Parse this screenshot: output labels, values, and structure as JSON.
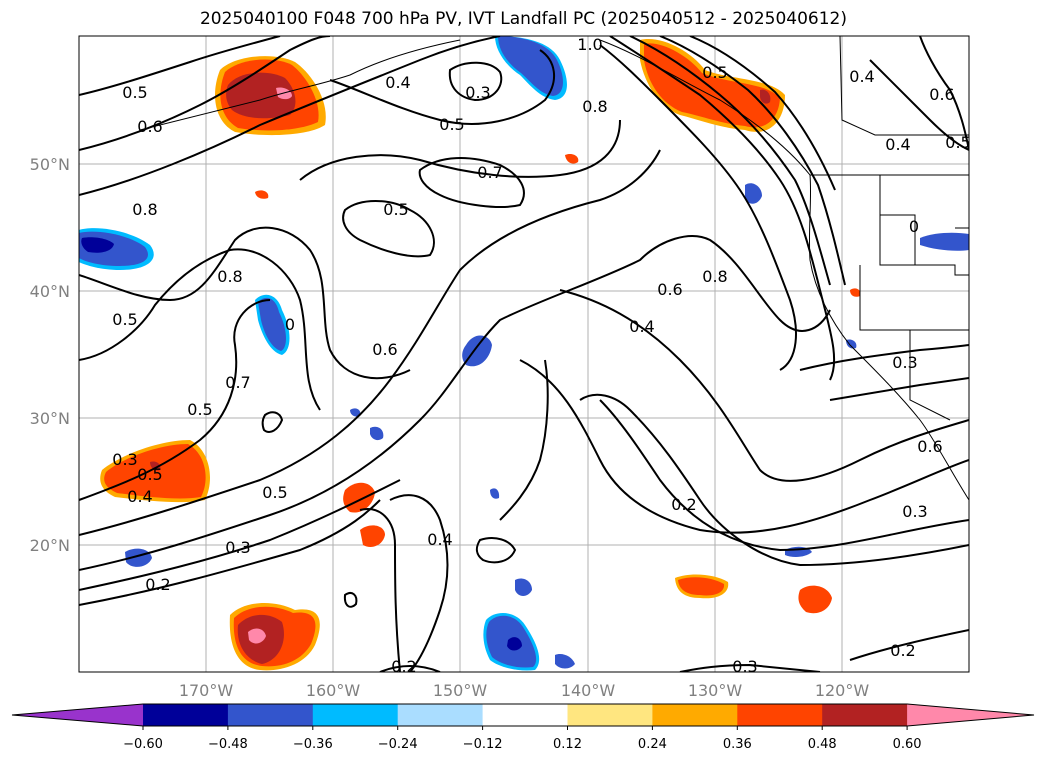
{
  "title": "2025040100 F048 700 hPa PV, IVT Landfall PC (2025040512 - 2025040612)",
  "lat_ticks": [
    "50°N",
    "40°N",
    "30°N",
    "20°N"
  ],
  "lon_ticks": [
    "170°W",
    "160°W",
    "150°W",
    "140°W",
    "130°W",
    "120°W"
  ],
  "colorbar": {
    "labels": [
      "−0.60",
      "−0.48",
      "−0.36",
      "−0.24",
      "−0.12",
      "0.12",
      "0.24",
      "0.36",
      "0.48",
      "0.60"
    ],
    "colors": [
      "#9933cc",
      "#000099",
      "#3355cc",
      "#00bbff",
      "#aaddff",
      "#ffffff",
      "#ffe680",
      "#ffaa00",
      "#ff4400",
      "#b22222",
      "#ff88aa"
    ]
  },
  "contour_labels": [
    "0.5",
    "0.6",
    "0.8",
    "0.5",
    "0.4",
    "0.3",
    "0.5",
    "0.7",
    "0.5",
    "1.0",
    "0.8",
    "0.5",
    "0.4",
    "0.6",
    "0.4",
    "0.5",
    "0.8",
    "0",
    "0.8",
    "0.6",
    "0.4",
    "0.5",
    "0.7",
    "0.5",
    "0.3",
    "0.6",
    "0.5",
    "0.4",
    "0.3",
    "0.2",
    "0.4",
    "0.2",
    "0.3",
    "0.2",
    "0.3",
    "0.2",
    "0",
    "0.3",
    "0.6"
  ]
}
